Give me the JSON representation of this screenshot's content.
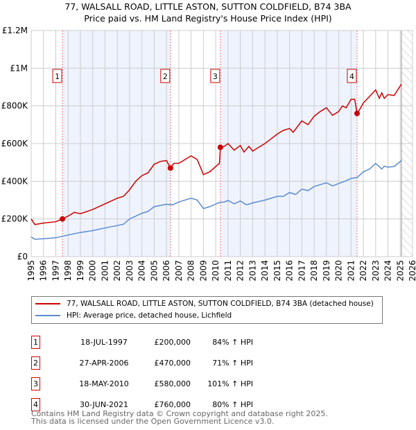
{
  "chart_data": {
    "type": "line",
    "title": "77, WALSALL ROAD, LITTLE ASTON, SUTTON COLDFIELD, B74 3BA",
    "subtitle": "Price paid vs. HM Land Registry's House Price Index (HPI)",
    "xlim": [
      1995,
      2026
    ],
    "ylim": [
      0,
      1200000
    ],
    "grid": true,
    "y_ticks": [
      {
        "v": 0,
        "label": "£0"
      },
      {
        "v": 200000,
        "label": "£200K"
      },
      {
        "v": 400000,
        "label": "£400K"
      },
      {
        "v": 600000,
        "label": "£600K"
      },
      {
        "v": 800000,
        "label": "£800K"
      },
      {
        "v": 1000000,
        "label": "£1M"
      },
      {
        "v": 1200000,
        "label": "£1.2M"
      }
    ],
    "x_ticks": [
      "1995",
      "1996",
      "1997",
      "1998",
      "1999",
      "2000",
      "2001",
      "2002",
      "2003",
      "2004",
      "2005",
      "2006",
      "2007",
      "2008",
      "2009",
      "2010",
      "2011",
      "2012",
      "2013",
      "2014",
      "2015",
      "2016",
      "2017",
      "2018",
      "2019",
      "2020",
      "2021",
      "2022",
      "2023",
      "2024",
      "2025",
      "2026"
    ],
    "shaded_ranges": [
      [
        1997.54,
        2006.32
      ],
      [
        2010.38,
        2021.49
      ]
    ],
    "forecast_from": 2025.1,
    "series": [
      {
        "name": "77, WALSALL ROAD, LITTLE ASTON, SUTTON COLDFIELD, B74 3BA (detached house)",
        "color": "#cc0000",
        "x": [
          1995,
          1995.3,
          1996,
          1997,
          1997.54,
          1998,
          1998.5,
          1999,
          2000,
          2001,
          2002,
          2002.5,
          2003,
          2003.5,
          2004,
          2004.5,
          2005,
          2005.5,
          2006,
          2006.32,
          2006.6,
          2007,
          2007.5,
          2008,
          2008.5,
          2009,
          2009.5,
          2010.3,
          2010.38,
          2010.7,
          2011,
          2011.5,
          2012,
          2012.3,
          2012.7,
          2013,
          2013.5,
          2014,
          2014.5,
          2015,
          2015.5,
          2016,
          2016.3,
          2017,
          2017.5,
          2018,
          2018.5,
          2019,
          2019.5,
          2020,
          2020.3,
          2020.6,
          2021,
          2021.3,
          2021.49,
          2021.7,
          2022,
          2022.5,
          2023,
          2023.3,
          2023.5,
          2023.7,
          2024,
          2024.5,
          2025.1
        ],
        "y": [
          200000,
          170000,
          178000,
          185000,
          200000,
          215000,
          235000,
          228000,
          250000,
          280000,
          310000,
          320000,
          355000,
          400000,
          430000,
          445000,
          490000,
          505000,
          510000,
          470000,
          495000,
          495000,
          515000,
          535000,
          515000,
          435000,
          450000,
          495000,
          580000,
          585000,
          600000,
          565000,
          590000,
          555000,
          585000,
          560000,
          580000,
          600000,
          625000,
          650000,
          670000,
          680000,
          660000,
          720000,
          700000,
          745000,
          770000,
          790000,
          750000,
          770000,
          800000,
          790000,
          835000,
          835000,
          760000,
          780000,
          815000,
          850000,
          885000,
          840000,
          870000,
          840000,
          860000,
          855000,
          915000
        ]
      },
      {
        "name": "HPI: Average price, detached house, Lichfield",
        "color": "#5b8bd0",
        "x": [
          1995,
          1995.3,
          1996,
          1997,
          1997.54,
          1998,
          1999,
          2000,
          2001,
          2002,
          2002.5,
          2003,
          2004,
          2004.5,
          2005,
          2006,
          2006.5,
          2007,
          2008,
          2008.5,
          2009,
          2009.5,
          2010.3,
          2010.7,
          2011,
          2011.5,
          2012,
          2012.5,
          2013,
          2014,
          2015,
          2015.5,
          2016,
          2016.5,
          2017,
          2017.5,
          2018,
          2019,
          2019.5,
          2020,
          2020.5,
          2021,
          2021.5,
          2022,
          2022.5,
          2023,
          2023.5,
          2023.7,
          2024,
          2024.5,
          2025.1
        ],
        "y": [
          105000,
          92000,
          95000,
          100000,
          108000,
          115000,
          128000,
          138000,
          152000,
          165000,
          172000,
          200000,
          230000,
          240000,
          265000,
          278000,
          275000,
          290000,
          310000,
          300000,
          255000,
          265000,
          288000,
          290000,
          298000,
          280000,
          295000,
          275000,
          285000,
          300000,
          320000,
          320000,
          340000,
          330000,
          358000,
          350000,
          372000,
          392000,
          375000,
          388000,
          400000,
          415000,
          420000,
          450000,
          465000,
          495000,
          465000,
          480000,
          475000,
          478000,
          510000
        ]
      }
    ],
    "sales": [
      {
        "label": "1",
        "x": 1997.54,
        "y": 200000,
        "date": "18-JUL-1997",
        "price": "£200,000",
        "hpi": "84% ↑ HPI"
      },
      {
        "label": "2",
        "x": 2006.32,
        "y": 470000,
        "date": "27-APR-2006",
        "price": "£470,000",
        "hpi": "71% ↑ HPI"
      },
      {
        "label": "3",
        "x": 2010.38,
        "y": 580000,
        "date": "18-MAY-2010",
        "price": "£580,000",
        "hpi": "101% ↑ HPI"
      },
      {
        "label": "4",
        "x": 2021.49,
        "y": 760000,
        "date": "30-JUN-2021",
        "price": "£760,000",
        "hpi": "80% ↑ HPI"
      }
    ]
  },
  "legend": {
    "property": "77, WALSALL ROAD, LITTLE ASTON, SUTTON COLDFIELD, B74 3BA (detached house)",
    "hpi": "HPI: Average price, detached house, Lichfield"
  },
  "footer": {
    "line1": "Contains HM Land Registry data © Crown copyright and database right 2025.",
    "line2": "This data is licensed under the Open Government Licence v3.0."
  }
}
